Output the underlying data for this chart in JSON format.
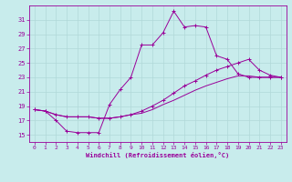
{
  "xlabel": "Windchill (Refroidissement éolien,°C)",
  "background_color": "#c8ecec",
  "grid_color": "#b0d8d8",
  "line_color": "#990099",
  "xlim": [
    -0.5,
    23.5
  ],
  "ylim": [
    14.0,
    33.0
  ],
  "yticks": [
    15,
    17,
    19,
    21,
    23,
    25,
    27,
    29,
    31
  ],
  "xticks": [
    0,
    1,
    2,
    3,
    4,
    5,
    6,
    7,
    8,
    9,
    10,
    11,
    12,
    13,
    14,
    15,
    16,
    17,
    18,
    19,
    20,
    21,
    22,
    23
  ],
  "line1_x": [
    0,
    1,
    2,
    3,
    4,
    5,
    6,
    7,
    8,
    9,
    10,
    11,
    12,
    13,
    14,
    15,
    16,
    17,
    18,
    19,
    20,
    21,
    22,
    23
  ],
  "line1_y": [
    18.5,
    18.3,
    17.0,
    15.5,
    15.3,
    15.3,
    15.3,
    19.2,
    21.3,
    23.0,
    27.5,
    27.5,
    29.2,
    32.2,
    30.0,
    30.2,
    30.0,
    26.0,
    25.5,
    23.5,
    23.0,
    23.0,
    23.0,
    23.0
  ],
  "line2_x": [
    0,
    1,
    2,
    3,
    4,
    5,
    6,
    7,
    8,
    9,
    10,
    11,
    12,
    13,
    14,
    15,
    16,
    17,
    18,
    19,
    20,
    21,
    22,
    23
  ],
  "line2_y": [
    18.5,
    18.3,
    17.8,
    17.5,
    17.5,
    17.5,
    17.3,
    17.3,
    17.5,
    17.8,
    18.3,
    19.0,
    19.8,
    20.8,
    21.8,
    22.5,
    23.3,
    24.0,
    24.5,
    25.0,
    25.5,
    24.0,
    23.3,
    23.0
  ],
  "line3_x": [
    0,
    1,
    2,
    3,
    4,
    5,
    6,
    7,
    8,
    9,
    10,
    11,
    12,
    13,
    14,
    15,
    16,
    17,
    18,
    19,
    20,
    21,
    22,
    23
  ],
  "line3_y": [
    18.5,
    18.3,
    17.8,
    17.5,
    17.5,
    17.5,
    17.3,
    17.3,
    17.5,
    17.8,
    18.0,
    18.5,
    19.2,
    19.8,
    20.5,
    21.2,
    21.8,
    22.3,
    22.8,
    23.2,
    23.2,
    23.0,
    23.0,
    23.0
  ]
}
